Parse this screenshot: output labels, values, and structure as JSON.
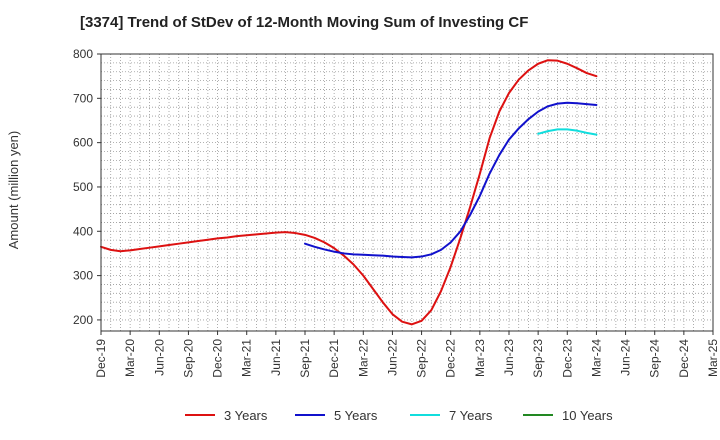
{
  "chart_data": {
    "type": "line",
    "title": "[3374]  Trend of StDev of 12-Month Moving Sum of Investing CF",
    "xlabel": "",
    "ylabel": "Amount (million yen)",
    "ylim": [
      175,
      800
    ],
    "yticks": [
      200,
      300,
      400,
      500,
      600,
      700,
      800
    ],
    "x_start": "Dec-19",
    "x_end": "Mar-25",
    "x_tick_labels": [
      "Dec-19",
      "Mar-20",
      "Jun-20",
      "Sep-20",
      "Dec-20",
      "Mar-21",
      "Jun-21",
      "Sep-21",
      "Dec-21",
      "Mar-22",
      "Jun-22",
      "Sep-22",
      "Dec-22",
      "Mar-23",
      "Jun-23",
      "Sep-23",
      "Dec-23",
      "Mar-24",
      "Jun-24",
      "Sep-24",
      "Dec-24",
      "Mar-25"
    ],
    "grid": true,
    "legend_position": "bottom",
    "series": [
      {
        "name": "3 Years",
        "color": "#dd1111",
        "x": [
          "Dec-19",
          "Jan-20",
          "Feb-20",
          "Mar-20",
          "Apr-20",
          "May-20",
          "Jun-20",
          "Jul-20",
          "Aug-20",
          "Sep-20",
          "Oct-20",
          "Nov-20",
          "Dec-20",
          "Jan-21",
          "Feb-21",
          "Mar-21",
          "Apr-21",
          "May-21",
          "Jun-21",
          "Jul-21",
          "Aug-21",
          "Sep-21",
          "Oct-21",
          "Nov-21",
          "Dec-21",
          "Jan-22",
          "Feb-22",
          "Mar-22",
          "Apr-22",
          "May-22",
          "Jun-22",
          "Jul-22",
          "Aug-22",
          "Sep-22",
          "Oct-22",
          "Nov-22",
          "Dec-22",
          "Jan-23",
          "Feb-23",
          "Mar-23",
          "Apr-23",
          "May-23",
          "Jun-23",
          "Jul-23",
          "Aug-23",
          "Sep-23",
          "Oct-23",
          "Nov-23",
          "Dec-23",
          "Jan-24",
          "Feb-24",
          "Mar-24"
        ],
        "values": [
          365,
          358,
          355,
          357,
          360,
          363,
          366,
          369,
          372,
          375,
          378,
          381,
          384,
          386,
          389,
          391,
          393,
          395,
          397,
          398,
          396,
          392,
          385,
          375,
          362,
          345,
          325,
          300,
          270,
          240,
          213,
          196,
          190,
          198,
          222,
          265,
          320,
          385,
          455,
          530,
          610,
          670,
          712,
          742,
          763,
          778,
          786,
          785,
          778,
          768,
          757,
          750
        ]
      },
      {
        "name": "5 Years",
        "color": "#1111cc",
        "x": [
          "Sep-21",
          "Oct-21",
          "Nov-21",
          "Dec-21",
          "Jan-22",
          "Feb-22",
          "Mar-22",
          "Apr-22",
          "May-22",
          "Jun-22",
          "Jul-22",
          "Aug-22",
          "Sep-22",
          "Oct-22",
          "Nov-22",
          "Dec-22",
          "Jan-23",
          "Feb-23",
          "Mar-23",
          "Apr-23",
          "May-23",
          "Jun-23",
          "Jul-23",
          "Aug-23",
          "Sep-23",
          "Oct-23",
          "Nov-23",
          "Dec-23",
          "Jan-24",
          "Feb-24",
          "Mar-24"
        ],
        "values": [
          372,
          365,
          359,
          354,
          350,
          348,
          347,
          346,
          345,
          343,
          342,
          341,
          343,
          348,
          358,
          375,
          400,
          437,
          480,
          530,
          572,
          607,
          632,
          653,
          670,
          682,
          688,
          690,
          689,
          687,
          685
        ]
      },
      {
        "name": "7 Years",
        "color": "#11dddd",
        "x": [
          "Sep-23",
          "Oct-23",
          "Nov-23",
          "Dec-23",
          "Jan-24",
          "Feb-24",
          "Mar-24"
        ],
        "values": [
          620,
          626,
          630,
          630,
          627,
          622,
          618
        ]
      },
      {
        "name": "10 Years",
        "color": "#228822",
        "x": [],
        "values": []
      }
    ]
  }
}
